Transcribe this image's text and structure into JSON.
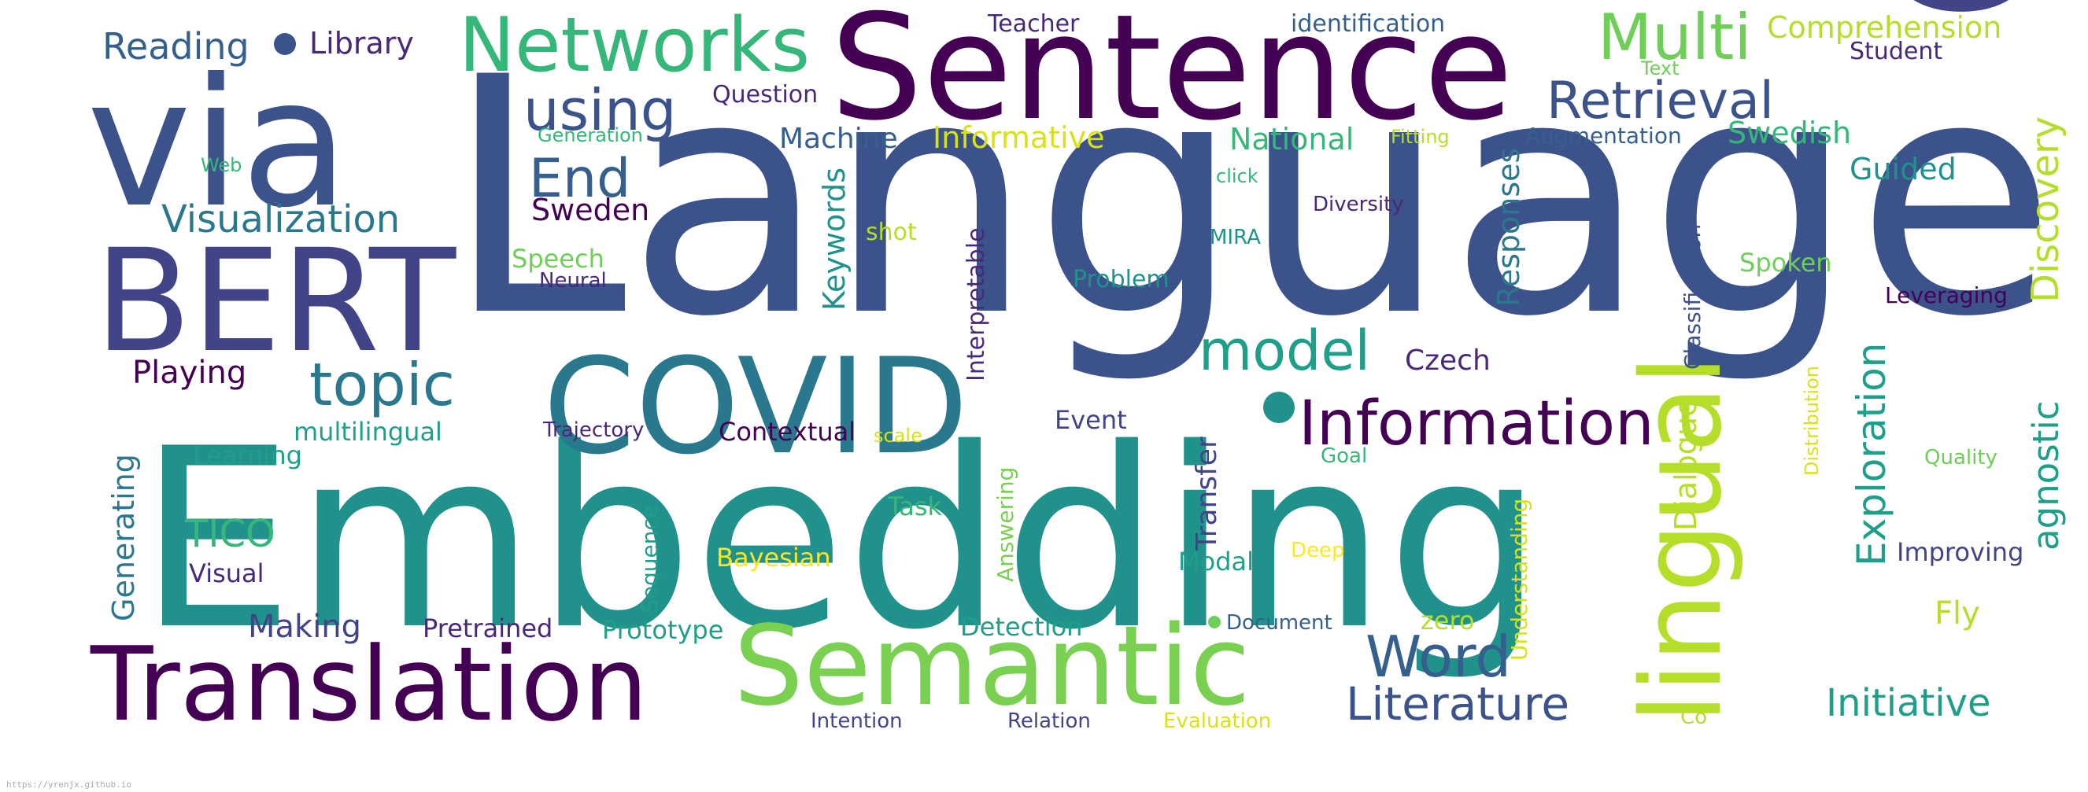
{
  "palette": {
    "dark_purple": "#440154",
    "indigo": "#3b528b",
    "slate_blue": "#414487",
    "blue": "#355f8d",
    "teal": "#21918c",
    "sea_green": "#1f9e89",
    "green": "#35b779",
    "light_green": "#6ece58",
    "yellow_green": "#b5de2b",
    "yellow": "#fde725"
  },
  "footer": {
    "url": "https://yrenjx.github.io"
  },
  "words": [
    {
      "text": "Language",
      "color": "#3b528b"
    },
    {
      "text": "Embedding",
      "color": "#21918c"
    },
    {
      "text": "Cross",
      "color": "#414487"
    },
    {
      "text": "Sentence",
      "color": "#440154"
    },
    {
      "text": "via",
      "color": "#3b528b"
    },
    {
      "text": "BERT",
      "color": "#414487"
    },
    {
      "text": "COVID",
      "color": "#2a788e"
    },
    {
      "text": "Translation",
      "color": "#440154"
    },
    {
      "text": "Semantic",
      "color": "#7ad151"
    },
    {
      "text": "lingual",
      "color": "#b5de2b"
    },
    {
      "text": "Networks",
      "color": "#35b779"
    },
    {
      "text": "Information",
      "color": "#440154"
    },
    {
      "text": "Multi",
      "color": "#6ece58"
    },
    {
      "text": "Retrieval",
      "color": "#3b528b"
    },
    {
      "text": "using",
      "color": "#3b528b"
    },
    {
      "text": "topic",
      "color": "#2a788e"
    },
    {
      "text": "model",
      "color": "#1f9e89"
    },
    {
      "text": "Word",
      "color": "#355f8d"
    },
    {
      "text": "End",
      "color": "#355f8d"
    },
    {
      "text": "Literature",
      "color": "#3b528b"
    },
    {
      "text": "Visualization",
      "color": "#2a788e"
    },
    {
      "text": "Exploration",
      "color": "#1f9e89"
    },
    {
      "text": "Discovery",
      "color": "#b5de2b"
    },
    {
      "text": "agnostic",
      "color": "#1f9e89"
    },
    {
      "text": "Initiative",
      "color": "#1f9e89"
    },
    {
      "text": "Comprehension",
      "color": "#b5de2b"
    },
    {
      "text": "Reading",
      "color": "#355f8d"
    },
    {
      "text": "Library",
      "color": "#482878"
    },
    {
      "text": "Teacher",
      "color": "#482878"
    },
    {
      "text": "identification",
      "color": "#355f8d"
    },
    {
      "text": "Student",
      "color": "#482878"
    },
    {
      "text": "Text",
      "color": "#6ece58"
    },
    {
      "text": "Question",
      "color": "#482878"
    },
    {
      "text": "Generation",
      "color": "#35b779"
    },
    {
      "text": "Machine",
      "color": "#355f8d"
    },
    {
      "text": "Informative",
      "color": "#d8e219"
    },
    {
      "text": "National",
      "color": "#35b779"
    },
    {
      "text": "Fitting",
      "color": "#b5de2b"
    },
    {
      "text": "Augmentation",
      "color": "#355f8d"
    },
    {
      "text": "Swedish",
      "color": "#35b779"
    },
    {
      "text": "Guided",
      "color": "#21918c"
    },
    {
      "text": "Web",
      "color": "#35b779"
    },
    {
      "text": "Sweden",
      "color": "#440154"
    },
    {
      "text": "Keywords",
      "color": "#21918c"
    },
    {
      "text": "Responses",
      "color": "#2a788e"
    },
    {
      "text": "click",
      "color": "#35b779"
    },
    {
      "text": "Diversity",
      "color": "#482878"
    },
    {
      "text": "Classification",
      "color": "#3b528b"
    },
    {
      "text": "Speech",
      "color": "#6ece58"
    },
    {
      "text": "shot",
      "color": "#b5de2b"
    },
    {
      "text": "Interpretable",
      "color": "#482878"
    },
    {
      "text": "MIRA",
      "color": "#21918c"
    },
    {
      "text": "Spoken",
      "color": "#6ece58"
    },
    {
      "text": "Neural",
      "color": "#482878"
    },
    {
      "text": "Problem",
      "color": "#21918c"
    },
    {
      "text": "Leveraging",
      "color": "#440154"
    },
    {
      "text": "Playing",
      "color": "#440154"
    },
    {
      "text": "Czech",
      "color": "#482878"
    },
    {
      "text": "Distribution",
      "color": "#d8e219"
    },
    {
      "text": "Generating",
      "color": "#2a788e"
    },
    {
      "text": "multilingual",
      "color": "#1f9e89"
    },
    {
      "text": "Trajectory",
      "color": "#482878"
    },
    {
      "text": "Contextual",
      "color": "#440154"
    },
    {
      "text": "scale",
      "color": "#d8e219"
    },
    {
      "text": "Event",
      "color": "#414487"
    },
    {
      "text": "Transfer",
      "color": "#414487"
    },
    {
      "text": "Dialogue",
      "color": "#b5de2b"
    },
    {
      "text": "Quality",
      "color": "#6ece58"
    },
    {
      "text": "Learning",
      "color": "#1f9e89"
    },
    {
      "text": "Goal",
      "color": "#35b779"
    },
    {
      "text": "Answering",
      "color": "#7ad151"
    },
    {
      "text": "TICO",
      "color": "#35b779"
    },
    {
      "text": "Task",
      "color": "#35b779"
    },
    {
      "text": "Understanding",
      "color": "#d8e219"
    },
    {
      "text": "Sequence",
      "color": "#1f9e89"
    },
    {
      "text": "Visual",
      "color": "#482878"
    },
    {
      "text": "Bayesian",
      "color": "#fde725"
    },
    {
      "text": "Modal",
      "color": "#1f9e89"
    },
    {
      "text": "Deep",
      "color": "#fde725"
    },
    {
      "text": "Improving",
      "color": "#414487"
    },
    {
      "text": "Making",
      "color": "#414487"
    },
    {
      "text": "Pretrained",
      "color": "#482878"
    },
    {
      "text": "Prototype",
      "color": "#1f9e89"
    },
    {
      "text": "Detection",
      "color": "#1f9e89"
    },
    {
      "text": "Document",
      "color": "#355f8d"
    },
    {
      "text": "zero",
      "color": "#b5de2b"
    },
    {
      "text": "Fly",
      "color": "#b5de2b"
    },
    {
      "text": "Intention",
      "color": "#414487"
    },
    {
      "text": "Relation",
      "color": "#414487"
    },
    {
      "text": "Evaluation",
      "color": "#d8e219"
    },
    {
      "text": "Co",
      "color": "#b5de2b"
    }
  ]
}
